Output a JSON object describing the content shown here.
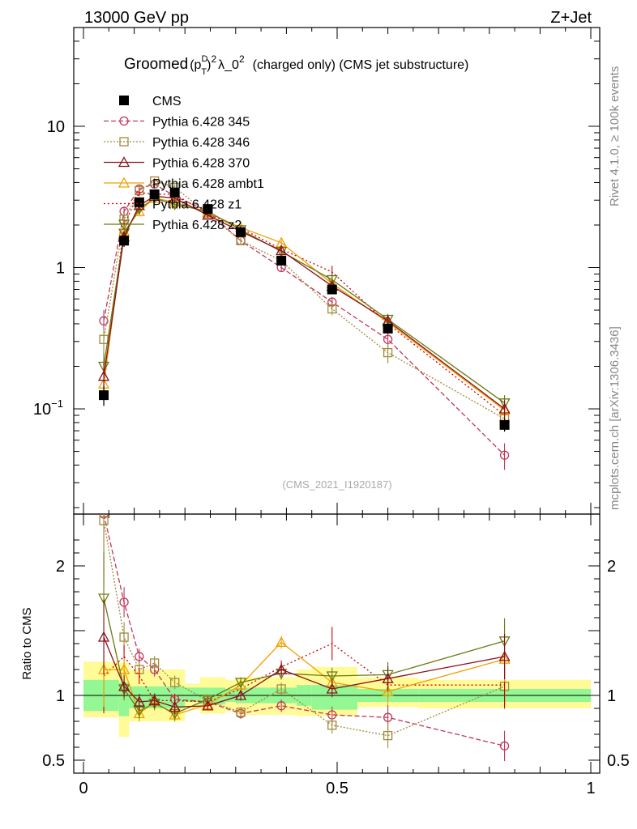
{
  "header": {
    "left": "13000 GeV pp",
    "right": "Z+Jet"
  },
  "side_labels": {
    "rivet": "Rivet 4.1.0, ≥ 100k events",
    "mcplots": "mcplots.cern.ch [arXiv:1306.3436]"
  },
  "title": {
    "groomed": "Groomed",
    "p": "(p",
    "sup_d": "D",
    "sub_t": "T",
    "close": ")",
    "sup_2": "2",
    "lambda": "λ_0",
    "sup_2b": "2",
    "rest": "(charged only) (CMS jet substructure)"
  },
  "watermark": "(CMS_2021_I1920187)",
  "ratio_ylabel": "Ratio to CMS",
  "legend": [
    {
      "label": "CMS",
      "color": "#000000",
      "marker": "square-filled",
      "dash": "none"
    },
    {
      "label": "Pythia 6.428 345",
      "color": "#c0375c",
      "marker": "circle",
      "dash": "6,3"
    },
    {
      "label": "Pythia 6.428 346",
      "color": "#a08a3c",
      "marker": "square",
      "dash": "2,2"
    },
    {
      "label": "Pythia 6.428 370",
      "color": "#8b0f1a",
      "marker": "triangle",
      "dash": "none"
    },
    {
      "label": "Pythia 6.428 ambt1",
      "color": "#f0a000",
      "marker": "triangle",
      "dash": "none"
    },
    {
      "label": "Pythia 6.428 z1",
      "color": "#d00000",
      "marker": "none",
      "dash": "2,3"
    },
    {
      "label": "Pythia 6.428 z2",
      "color": "#6b7a10",
      "marker": "triangle-down",
      "dash": "none"
    }
  ],
  "chart_data": {
    "type": "line",
    "x": [
      0.04,
      0.08,
      0.11,
      0.14,
      0.18,
      0.245,
      0.31,
      0.39,
      0.49,
      0.6,
      0.83
    ],
    "main": {
      "yscale": "log",
      "ylim": [
        0.018,
        50
      ],
      "xlim": [
        -0.02,
        1.0
      ],
      "yticklabels": [
        {
          "value": 0.1,
          "base": "10",
          "exp": "−1"
        },
        {
          "value": 1,
          "base": "1",
          "exp": ""
        },
        {
          "value": 10,
          "base": "10",
          "exp": ""
        }
      ]
    },
    "ratio": {
      "ylim": [
        0.4,
        2.4
      ],
      "yticks": [
        0.5,
        1,
        2
      ],
      "yticklabels": [
        "0.5",
        "1",
        "2"
      ],
      "xticks": [
        0,
        0.5,
        1
      ],
      "xticklabels": [
        "0",
        "0.5",
        "1"
      ],
      "band_edges": [
        0,
        0.07,
        0.09,
        0.2,
        0.23,
        0.28,
        0.3,
        0.42,
        0.45,
        0.54,
        0.66,
        1.0
      ],
      "band_inner": [
        [
          0.88,
          1.12
        ],
        [
          0.84,
          1.1
        ],
        [
          0.9,
          1.07
        ],
        [
          0.95,
          1.06
        ],
        [
          0.93,
          1.06
        ],
        [
          0.95,
          1.05
        ],
        [
          0.94,
          1.06
        ],
        [
          0.92,
          1.08
        ],
        [
          0.89,
          1.08
        ],
        [
          0.95,
          1.05
        ],
        [
          0.95,
          1.05
        ]
      ],
      "band_outer": [
        [
          0.83,
          1.26
        ],
        [
          0.68,
          1.25
        ],
        [
          0.8,
          1.2
        ],
        [
          0.9,
          1.09
        ],
        [
          0.86,
          1.14
        ],
        [
          0.88,
          1.12
        ],
        [
          0.85,
          1.14
        ],
        [
          0.84,
          1.2
        ],
        [
          0.84,
          1.22
        ],
        [
          0.91,
          1.14
        ],
        [
          0.9,
          1.12
        ]
      ]
    },
    "series": [
      {
        "name": "CMS",
        "values": [
          0.125,
          1.55,
          2.9,
          3.3,
          3.4,
          2.6,
          1.78,
          1.12,
          0.7,
          0.37,
          0.077
        ],
        "err": [
          0.02,
          0.15,
          0.2,
          0.2,
          0.2,
          0.15,
          0.1,
          0.08,
          0.05,
          0.03,
          0.008
        ]
      },
      {
        "name": "Pythia 6.428 345",
        "values": [
          0.42,
          2.5,
          3.6,
          3.9,
          3.2,
          2.5,
          1.55,
          1.0,
          0.57,
          0.31,
          0.047
        ],
        "ratio": [
          2.4,
          1.72,
          1.3,
          1.2,
          0.97,
          0.95,
          0.86,
          0.92,
          0.85,
          0.83,
          0.61
        ],
        "err": [
          0.08,
          0.2,
          0.2,
          0.2,
          0.15,
          0.1,
          0.08,
          0.06,
          0.05,
          0.04,
          0.01
        ]
      },
      {
        "name": "Pythia 6.428 346",
        "values": [
          0.31,
          2.2,
          3.5,
          4.1,
          3.7,
          2.4,
          1.55,
          1.12,
          0.51,
          0.25,
          0.085
        ],
        "ratio": [
          2.35,
          1.45,
          1.2,
          1.25,
          1.1,
          0.96,
          0.87,
          1.05,
          0.77,
          0.69,
          1.07
        ],
        "err": [
          0.06,
          0.2,
          0.2,
          0.2,
          0.2,
          0.1,
          0.08,
          0.06,
          0.05,
          0.04,
          0.015
        ]
      },
      {
        "name": "Pythia 6.428 370",
        "values": [
          0.17,
          1.65,
          2.75,
          3.2,
          3.1,
          2.35,
          1.8,
          1.32,
          0.74,
          0.42,
          0.1
        ],
        "ratio": [
          1.45,
          1.07,
          0.95,
          0.96,
          0.91,
          0.92,
          1.0,
          1.2,
          1.05,
          1.13,
          1.3
        ],
        "err": [
          0.04,
          0.15,
          0.2,
          0.2,
          0.2,
          0.1,
          0.08,
          0.06,
          0.05,
          0.04,
          0.015
        ]
      },
      {
        "name": "Pythia 6.428 ambt1",
        "values": [
          0.15,
          1.8,
          2.5,
          3.1,
          2.9,
          2.45,
          1.92,
          1.5,
          0.77,
          0.41,
          0.098
        ],
        "ratio": [
          1.2,
          1.2,
          0.86,
          0.95,
          0.85,
          0.93,
          1.08,
          1.41,
          1.1,
          1.03,
          1.28
        ],
        "err": [
          0.04,
          0.15,
          0.2,
          0.2,
          0.2,
          0.1,
          0.08,
          0.06,
          0.05,
          0.04,
          0.015
        ]
      },
      {
        "name": "Pythia 6.428 z1",
        "values": [
          0.145,
          2.0,
          3.4,
          3.3,
          3.3,
          2.4,
          1.9,
          1.35,
          0.93,
          0.4,
          0.09
        ],
        "ratio": [
          1.15,
          1.3,
          1.15,
          0.96,
          0.96,
          0.95,
          1.05,
          1.22,
          1.4,
          1.08,
          1.08
        ],
        "err": [
          0.04,
          0.15,
          0.2,
          0.2,
          0.2,
          0.1,
          0.08,
          0.06,
          0.1,
          0.04,
          0.015
        ]
      },
      {
        "name": "Pythia 6.428 z2",
        "values": [
          0.2,
          1.75,
          2.6,
          3.1,
          2.8,
          2.5,
          1.85,
          1.3,
          0.82,
          0.43,
          0.11
        ],
        "ratio": [
          1.75,
          1.05,
          0.88,
          0.94,
          0.86,
          0.97,
          1.1,
          1.17,
          1.15,
          1.16,
          1.42
        ],
        "err": [
          0.05,
          0.15,
          0.2,
          0.2,
          0.2,
          0.1,
          0.08,
          0.06,
          0.05,
          0.04,
          0.015
        ]
      }
    ]
  }
}
